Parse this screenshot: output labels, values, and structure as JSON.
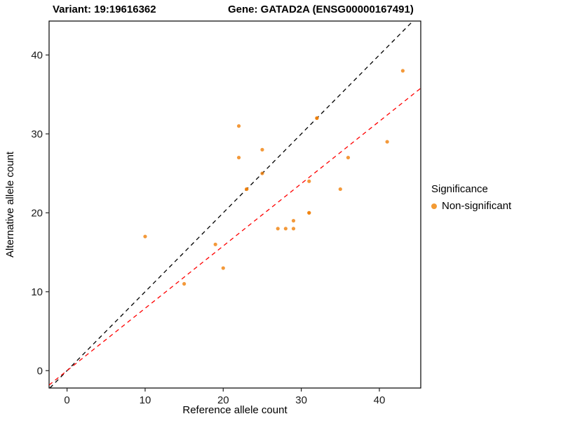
{
  "titles": {
    "variant": "Variant: 19:19616362",
    "gene": "Gene: GATAD2A (ENSG00000167491)"
  },
  "chart_data": {
    "type": "scatter",
    "xlabel": "Reference allele count",
    "ylabel": "Alternative allele count",
    "xlim": [
      -2.3,
      45.3
    ],
    "ylim": [
      -2.2,
      44.3
    ],
    "xticks": [
      0,
      10,
      20,
      30,
      40
    ],
    "yticks": [
      0,
      10,
      20,
      30,
      40
    ],
    "points": [
      [
        10,
        17
      ],
      [
        15,
        11
      ],
      [
        19,
        16
      ],
      [
        20,
        13
      ],
      [
        22,
        27
      ],
      [
        22,
        31
      ],
      [
        23,
        23
      ],
      [
        23,
        23
      ],
      [
        25,
        28
      ],
      [
        25,
        25
      ],
      [
        27,
        18
      ],
      [
        28,
        18
      ],
      [
        29,
        18
      ],
      [
        29,
        19
      ],
      [
        31,
        20
      ],
      [
        31,
        20
      ],
      [
        31,
        24
      ],
      [
        32,
        32
      ],
      [
        32,
        32
      ],
      [
        35,
        23
      ],
      [
        36,
        27
      ],
      [
        41,
        29
      ],
      [
        43,
        38
      ]
    ],
    "point_color": "#F07F09",
    "point_opacity": 0.8,
    "identity_line": {
      "color": "#000000",
      "style": "dashed",
      "slope": 1,
      "intercept": 0
    },
    "fit_line": {
      "color": "#FF0000",
      "style": "dashed",
      "slope": 0.79,
      "intercept": 0
    },
    "legend": {
      "title": "Significance",
      "items": [
        {
          "label": "Non-significant",
          "color": "#F39A33"
        }
      ]
    },
    "grid": false,
    "legend_position": "right"
  }
}
